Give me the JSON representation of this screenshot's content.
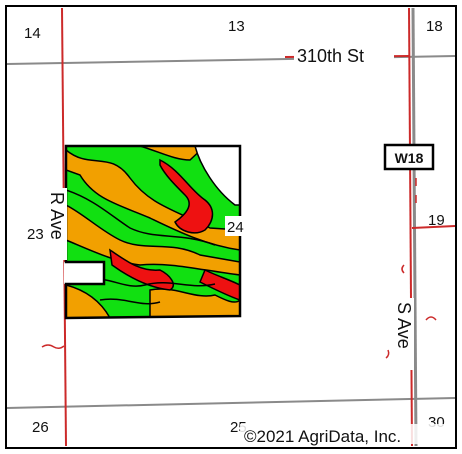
{
  "map": {
    "section_numbers": {
      "top_left": "14",
      "top_middle": "13",
      "top_right": "18",
      "middle_left": "23",
      "middle_center": "24",
      "middle_right": "19",
      "bottom_left": "26",
      "bottom_middle": "25",
      "bottom_right": "30"
    },
    "roads": {
      "east_west_street": "310th St",
      "west_avenue": "R Ave",
      "east_avenue": "S Ave"
    },
    "route_shield": "W18",
    "copyright": "©2021 AgriData, Inc.",
    "colors": {
      "road_red": "#cc2a2a",
      "grid_gray": "#8a8a8a",
      "soil_green": "#11e011",
      "soil_orange": "#f2a000",
      "soil_red": "#ee1111",
      "border": "#000000"
    }
  }
}
